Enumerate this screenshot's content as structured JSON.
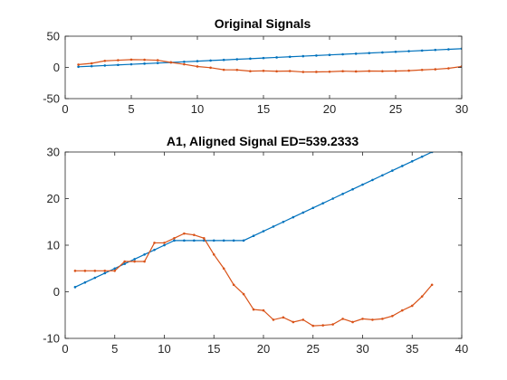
{
  "figure": {
    "background": "#ffffff",
    "axes_color": "#262626",
    "grid": false
  },
  "chart_data": [
    {
      "type": "line",
      "title": "Original Signals",
      "xlabel": "",
      "ylabel": "",
      "xlim": [
        0,
        30
      ],
      "ylim": [
        -50,
        50
      ],
      "xticks": [
        0,
        5,
        10,
        15,
        20,
        25,
        30
      ],
      "yticks": [
        -50,
        0,
        50
      ],
      "series": [
        {
          "color": "#0072BD",
          "x": [
            1,
            2,
            3,
            4,
            5,
            6,
            7,
            8,
            9,
            10,
            11,
            12,
            13,
            14,
            15,
            16,
            17,
            18,
            19,
            20,
            21,
            22,
            23,
            24,
            25,
            26,
            27,
            28,
            29,
            30
          ],
          "y": [
            1,
            2,
            3,
            4,
            5,
            6,
            7,
            8,
            9,
            10,
            11,
            12,
            13,
            14,
            15,
            16,
            17,
            18,
            19,
            20,
            21,
            22,
            23,
            24,
            25,
            26,
            27,
            28,
            29,
            30
          ]
        },
        {
          "color": "#D95319",
          "x": [
            1,
            2,
            3,
            4,
            5,
            6,
            7,
            8,
            9,
            10,
            11,
            12,
            13,
            14,
            15,
            16,
            17,
            18,
            19,
            20,
            21,
            22,
            23,
            24,
            25,
            26,
            27,
            28,
            29,
            30
          ],
          "y": [
            4.5,
            6.5,
            10.5,
            11.5,
            12.5,
            12.2,
            11.5,
            8,
            5,
            1.5,
            -0.5,
            -3.8,
            -4,
            -6,
            -5.5,
            -6.2,
            -5.8,
            -7.3,
            -7.2,
            -6.9,
            -6,
            -6.5,
            -5.8,
            -6,
            -5.8,
            -5.2,
            -4,
            -3,
            -1.5,
            1.5
          ]
        }
      ]
    },
    {
      "type": "line",
      "title": "A1, Aligned Signal ED=539.2333",
      "xlabel": "",
      "ylabel": "",
      "xlim": [
        0,
        40
      ],
      "ylim": [
        -10,
        30
      ],
      "xticks": [
        0,
        5,
        10,
        15,
        20,
        25,
        30,
        35,
        40
      ],
      "yticks": [
        -10,
        0,
        10,
        20,
        30
      ],
      "series": [
        {
          "color": "#0072BD",
          "x": [
            1,
            2,
            3,
            4,
            5,
            6,
            7,
            8,
            9,
            10,
            11,
            12,
            13,
            14,
            15,
            16,
            17,
            18,
            19,
            20,
            21,
            22,
            23,
            24,
            25,
            26,
            27,
            28,
            29,
            30,
            31,
            32,
            33,
            34,
            35,
            36,
            37
          ],
          "y": [
            1,
            2,
            3,
            4,
            5,
            6,
            7,
            8,
            9,
            10,
            11,
            11,
            11,
            11,
            11,
            11,
            11,
            11,
            12,
            13,
            14,
            15,
            16,
            17,
            18,
            19,
            20,
            21,
            22,
            23,
            24,
            25,
            26,
            27,
            28,
            29,
            30
          ]
        },
        {
          "color": "#D95319",
          "x": [
            1,
            2,
            3,
            4,
            5,
            6,
            7,
            8,
            9,
            10,
            11,
            12,
            13,
            14,
            15,
            16,
            17,
            18,
            19,
            20,
            21,
            22,
            23,
            24,
            25,
            26,
            27,
            28,
            29,
            30,
            31,
            32,
            33,
            34,
            35,
            36,
            37
          ],
          "y": [
            4.5,
            4.5,
            4.5,
            4.5,
            4.5,
            6.5,
            6.5,
            6.5,
            10.5,
            10.5,
            11.5,
            12.5,
            12.2,
            11.5,
            8,
            5,
            1.5,
            -0.5,
            -3.8,
            -4,
            -6,
            -5.5,
            -6.5,
            -6,
            -7.3,
            -7.2,
            -7,
            -5.8,
            -6.5,
            -5.8,
            -6,
            -5.8,
            -5.2,
            -4,
            -3,
            -1,
            1.5
          ]
        }
      ]
    }
  ]
}
